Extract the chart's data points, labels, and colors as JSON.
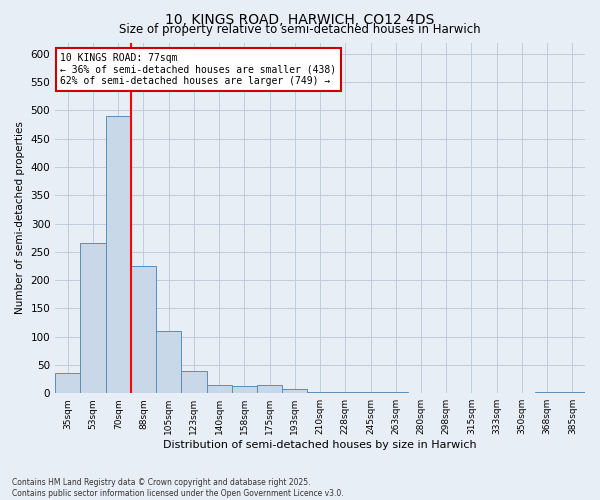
{
  "title": "10, KINGS ROAD, HARWICH, CO12 4DS",
  "subtitle": "Size of property relative to semi-detached houses in Harwich",
  "xlabel": "Distribution of semi-detached houses by size in Harwich",
  "ylabel": "Number of semi-detached properties",
  "categories": [
    "35sqm",
    "53sqm",
    "70sqm",
    "88sqm",
    "105sqm",
    "123sqm",
    "140sqm",
    "158sqm",
    "175sqm",
    "193sqm",
    "210sqm",
    "228sqm",
    "245sqm",
    "263sqm",
    "280sqm",
    "298sqm",
    "315sqm",
    "333sqm",
    "350sqm",
    "368sqm",
    "385sqm"
  ],
  "values": [
    35,
    265,
    490,
    225,
    110,
    40,
    15,
    13,
    14,
    7,
    3,
    3,
    2,
    2,
    1,
    1,
    0,
    0,
    0,
    3,
    3
  ],
  "bar_color": "#c8d8e8",
  "bar_edge_color": "#5b8db8",
  "red_line_x": 2.5,
  "red_line_label": "10 KINGS ROAD: 77sqm",
  "annotation_smaller": "← 36% of semi-detached houses are smaller (438)",
  "annotation_larger": "62% of semi-detached houses are larger (749) →",
  "annotation_box_color": "#ffffff",
  "annotation_box_edge": "#cc0000",
  "ylim": [
    0,
    620
  ],
  "yticks": [
    0,
    50,
    100,
    150,
    200,
    250,
    300,
    350,
    400,
    450,
    500,
    550,
    600
  ],
  "grid_color": "#c0ccdd",
  "background_color": "#e8eef5",
  "title_fontsize": 10,
  "subtitle_fontsize": 8.5,
  "footnote": "Contains HM Land Registry data © Crown copyright and database right 2025.\nContains public sector information licensed under the Open Government Licence v3.0."
}
